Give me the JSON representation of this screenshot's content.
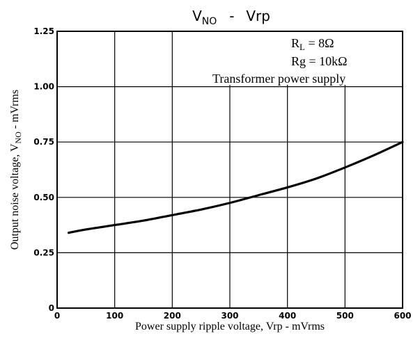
{
  "chart_data": {
    "type": "line",
    "title": {
      "main": "V",
      "main_sub": "NO",
      "sep": "-",
      "rhs": "Vrp"
    },
    "xlabel": "Power supply ripple voltage, Vrp - mVrms",
    "ylabel": {
      "pre": "Output noise voltage, V",
      "sub": "NO",
      "post": " - mVrms"
    },
    "xlim": [
      0,
      600
    ],
    "ylim": [
      0,
      1.25
    ],
    "x_ticks": [
      0,
      100,
      200,
      300,
      400,
      500,
      600
    ],
    "x_tick_labels": [
      "0",
      "100",
      "200",
      "300",
      "400",
      "500",
      "600"
    ],
    "y_ticks": [
      0,
      0.25,
      0.5,
      0.75,
      1.0,
      1.25
    ],
    "y_tick_labels": [
      "0",
      "0.25",
      "0.50",
      "0.75",
      "1.00",
      "1.25"
    ],
    "grid": true,
    "annotations": {
      "rl": {
        "pre": "R",
        "sub": "L",
        "post": " = 8Ω"
      },
      "rg": "Rg = 10kΩ",
      "supply": "Transformer power supply"
    },
    "series": [
      {
        "x": [
          20,
          50,
          100,
          150,
          200,
          250,
          300,
          350,
          400,
          450,
          500,
          550,
          600
        ],
        "y": [
          0.34,
          0.355,
          0.375,
          0.395,
          0.42,
          0.445,
          0.475,
          0.51,
          0.545,
          0.585,
          0.635,
          0.69,
          0.75
        ]
      }
    ]
  }
}
